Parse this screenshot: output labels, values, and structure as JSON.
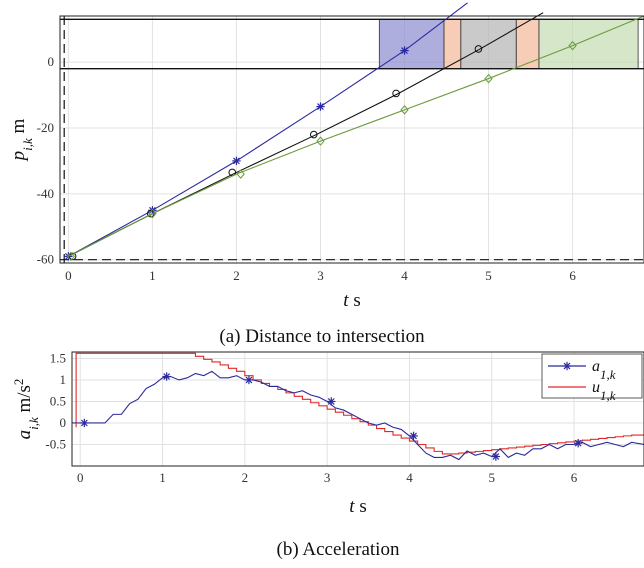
{
  "chart_data": [
    {
      "type": "line",
      "caption": "(a) Distance to intersection",
      "xlabel": "t s",
      "ylabel": "p_{i,k} m",
      "xlim": [
        -0.1,
        6.85
      ],
      "ylim": [
        -61,
        14
      ],
      "xticks": [
        0,
        1,
        2,
        3,
        4,
        5,
        6
      ],
      "yticks": [
        -60,
        -40,
        -20,
        0
      ],
      "grid": true,
      "hlines": [
        -60,
        -2,
        13
      ],
      "vlines": [
        -0.05
      ],
      "intersection_band": [
        -2,
        13
      ],
      "colors": {
        "blue": "#2b2b9e",
        "black": "#111111",
        "green": "#6a9a3a",
        "blue_fill": "#8c8cd0",
        "gray_fill": "#b4b4b4",
        "green_fill": "#c4dbb0",
        "orange_fill": "#f5b89a"
      },
      "occupancy": [
        {
          "color": "blue_fill",
          "x0": 3.7,
          "x1": 4.47
        },
        {
          "color": "orange_fill",
          "x0": 4.47,
          "x1": 4.67
        },
        {
          "color": "gray_fill",
          "x0": 4.67,
          "x1": 5.33
        },
        {
          "color": "orange_fill",
          "x0": 5.33,
          "x1": 5.6
        },
        {
          "color": "green_fill",
          "x0": 5.6,
          "x1": 6.78
        }
      ],
      "series": [
        {
          "color": "blue",
          "marker": "asterisk",
          "x": [
            0,
            1,
            2,
            3,
            4,
            4.75
          ],
          "y": [
            -59,
            -45,
            -30,
            -13.5,
            3.5,
            18
          ],
          "markers_x": [
            0,
            1,
            2,
            3,
            4
          ],
          "markers_y": [
            -59,
            -45,
            -30,
            -13.5,
            3.5
          ]
        },
        {
          "color": "black",
          "marker": "circle",
          "x": [
            0,
            1,
            2,
            2.95,
            3.93,
            4.9,
            5.65
          ],
          "y": [
            -59,
            -46,
            -33.5,
            -22,
            -9.5,
            4,
            15
          ],
          "markers_x": [
            0.05,
            0.98,
            1.95,
            2.92,
            3.9,
            4.88
          ],
          "markers_y": [
            -59,
            -46,
            -33.5,
            -22,
            -9.5,
            4
          ]
        },
        {
          "color": "green",
          "marker": "diamond",
          "x": [
            0,
            1,
            2,
            3,
            4,
            5,
            6,
            6.85
          ],
          "y": [
            -59,
            -46,
            -34,
            -24,
            -14.5,
            -5,
            5,
            14
          ],
          "markers_x": [
            0.03,
            1,
            2.05,
            3,
            4,
            5,
            6
          ],
          "markers_y": [
            -59,
            -46,
            -34,
            -24,
            -14.5,
            -5,
            5
          ]
        }
      ]
    },
    {
      "type": "line",
      "caption": "(b) Acceleration",
      "xlabel": "t s",
      "ylabel": "a_{i,k} m/s^2",
      "xlim": [
        -0.1,
        6.85
      ],
      "ylim": [
        -1.0,
        1.65
      ],
      "xticks": [
        0,
        1,
        2,
        3,
        4,
        5,
        6
      ],
      "yticks": [
        -0.5,
        0,
        0.5,
        1,
        1.5
      ],
      "ytick_labels": [
        "-0.5",
        "0",
        "0.5",
        "1",
        "1.5"
      ],
      "grid": true,
      "legend": {
        "position": "top-right",
        "entries": [
          {
            "label": "a_{1,k}",
            "color": "blue",
            "marker": "asterisk"
          },
          {
            "label": "u_{1,k}",
            "color": "red",
            "marker": "none"
          }
        ]
      },
      "colors": {
        "blue": "#2b2b9e",
        "red": "#e0282a"
      },
      "series": [
        {
          "name": "a_{1,k}",
          "color": "blue",
          "marker": "asterisk",
          "x": [
            -0.1,
            0.05,
            0.3,
            0.4,
            0.5,
            0.6,
            0.7,
            0.8,
            0.9,
            1.0,
            1.1,
            1.2,
            1.3,
            1.4,
            1.5,
            1.6,
            1.7,
            1.8,
            1.9,
            2.0,
            2.1,
            2.2,
            2.3,
            2.4,
            2.5,
            2.6,
            2.7,
            2.8,
            2.9,
            3.0,
            3.1,
            3.2,
            3.3,
            3.4,
            3.5,
            3.6,
            3.7,
            3.8,
            3.9,
            4.0,
            4.1,
            4.2,
            4.3,
            4.4,
            4.5,
            4.6,
            4.7,
            4.8,
            4.9,
            5.0,
            5.1,
            5.2,
            5.3,
            5.4,
            5.5,
            5.6,
            5.7,
            5.8,
            5.9,
            6.0,
            6.1,
            6.2,
            6.3,
            6.4,
            6.5,
            6.6,
            6.7,
            6.85
          ],
          "y": [
            0,
            0,
            0,
            0.2,
            0.2,
            0.45,
            0.55,
            0.8,
            0.9,
            1.05,
            1.08,
            1.0,
            1.05,
            1.15,
            1.1,
            1.2,
            1.05,
            1.05,
            1.1,
            1.0,
            1.0,
            0.95,
            0.85,
            0.85,
            0.75,
            0.7,
            0.75,
            0.65,
            0.6,
            0.5,
            0.35,
            0.3,
            0.2,
            0.1,
            0.0,
            -0.05,
            0.0,
            -0.1,
            -0.15,
            -0.3,
            -0.5,
            -0.7,
            -0.8,
            -0.8,
            -0.75,
            -0.85,
            -0.65,
            -0.75,
            -0.7,
            -0.78,
            -0.6,
            -0.8,
            -0.7,
            -0.75,
            -0.6,
            -0.6,
            -0.5,
            -0.6,
            -0.5,
            -0.5,
            -0.45,
            -0.55,
            -0.5,
            -0.45,
            -0.5,
            -0.55,
            -0.45,
            -0.5
          ],
          "markers_x": [
            0.05,
            1.05,
            2.05,
            3.05,
            4.05,
            5.05,
            6.05
          ],
          "markers_y": [
            0,
            1.08,
            1.0,
            0.5,
            -0.3,
            -0.78,
            -0.47
          ]
        },
        {
          "name": "u_{1,k}",
          "color": "red",
          "marker": "none",
          "step": true,
          "x": [
            -0.05,
            -0.05,
            1.3,
            1.4,
            1.5,
            1.6,
            1.7,
            1.8,
            1.9,
            2.0,
            2.1,
            2.2,
            2.3,
            2.4,
            2.5,
            2.6,
            2.7,
            2.8,
            2.9,
            3.0,
            3.1,
            3.2,
            3.3,
            3.4,
            3.5,
            3.6,
            3.7,
            3.8,
            3.9,
            4.0,
            4.1,
            4.2,
            4.3,
            4.4,
            4.5,
            4.6,
            4.7,
            4.8,
            4.9,
            5.0,
            5.1,
            5.2,
            5.3,
            5.4,
            5.5,
            5.6,
            5.7,
            5.8,
            5.9,
            6.0,
            6.1,
            6.2,
            6.3,
            6.4,
            6.5,
            6.6,
            6.7,
            6.85
          ],
          "y": [
            -0.1,
            1.62,
            1.62,
            1.55,
            1.48,
            1.42,
            1.35,
            1.27,
            1.2,
            1.1,
            1.0,
            0.92,
            0.85,
            0.78,
            0.7,
            0.62,
            0.55,
            0.47,
            0.4,
            0.32,
            0.25,
            0.18,
            0.1,
            0.03,
            -0.05,
            -0.13,
            -0.2,
            -0.28,
            -0.35,
            -0.42,
            -0.5,
            -0.58,
            -0.66,
            -0.72,
            -0.72,
            -0.7,
            -0.68,
            -0.66,
            -0.64,
            -0.62,
            -0.6,
            -0.58,
            -0.56,
            -0.54,
            -0.52,
            -0.5,
            -0.48,
            -0.46,
            -0.44,
            -0.42,
            -0.4,
            -0.38,
            -0.36,
            -0.34,
            -0.32,
            -0.3,
            -0.28,
            -0.25
          ]
        }
      ]
    }
  ]
}
